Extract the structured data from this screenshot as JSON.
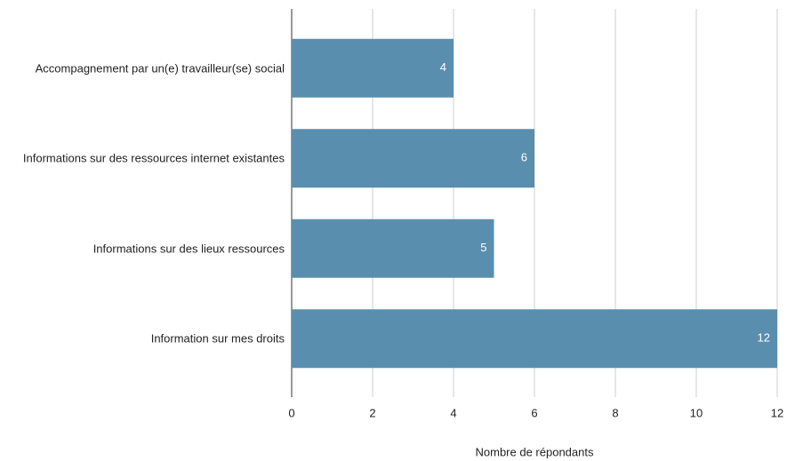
{
  "chart_data": {
    "type": "bar",
    "orientation": "horizontal",
    "categories": [
      "Accompagnement par un(e) travailleur(se) social",
      "Informations sur des ressources internet existantes",
      "Informations sur des lieux ressources",
      "Information sur mes droits"
    ],
    "values": [
      4,
      6,
      5,
      12
    ],
    "color": "#5a8eae",
    "xlabel": "Nombre de répondants",
    "xlim": [
      0,
      12
    ],
    "xticks": [
      0,
      2,
      4,
      6,
      8,
      10,
      12
    ],
    "grid": true
  }
}
